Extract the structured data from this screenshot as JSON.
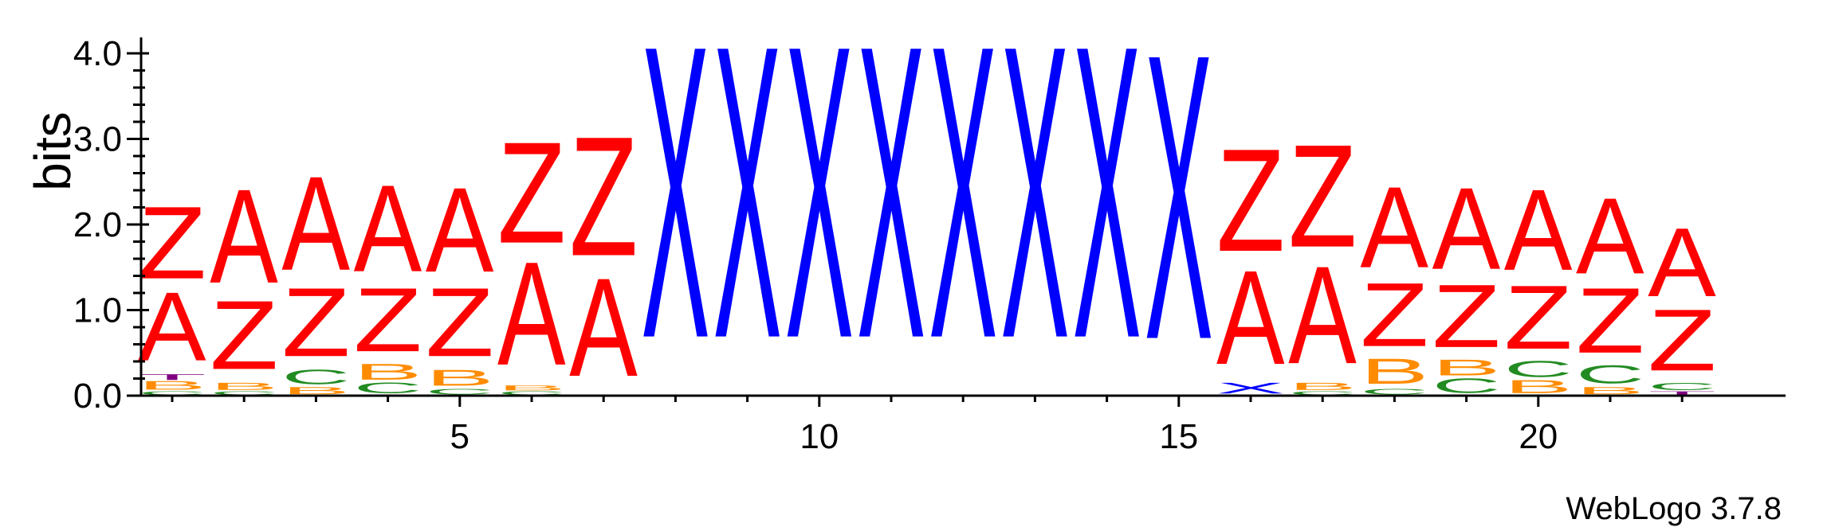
{
  "chart_data": {
    "type": "sequence-logo",
    "ylabel": "bits",
    "ylim": [
      0,
      4.0
    ],
    "y_ticks": [
      "0.0",
      "1.0",
      "2.0",
      "3.0",
      "4.0"
    ],
    "x_ticks": [
      5,
      10,
      15,
      20
    ],
    "footer": "WebLogo 3.7.8",
    "colors": {
      "A": "#ff0000",
      "Z": "#ff0000",
      "X": "#0000ff",
      "B": "#ff8c00",
      "C": "#228b22",
      "T": "#800080"
    },
    "positions": [
      {
        "pos": 1,
        "letters": [
          {
            "l": "C",
            "h": 0.05
          },
          {
            "l": "B",
            "h": 0.12
          },
          {
            "l": "T",
            "h": 0.08
          },
          {
            "l": "A",
            "h": 0.95
          },
          {
            "l": "Z",
            "h": 1.0
          }
        ]
      },
      {
        "pos": 2,
        "letters": [
          {
            "l": "C",
            "h": 0.05
          },
          {
            "l": "B",
            "h": 0.1
          },
          {
            "l": "Z",
            "h": 0.95
          },
          {
            "l": "A",
            "h": 1.3
          }
        ]
      },
      {
        "pos": 3,
        "letters": [
          {
            "l": "B",
            "h": 0.1
          },
          {
            "l": "C",
            "h": 0.2
          },
          {
            "l": "Z",
            "h": 0.95
          },
          {
            "l": "A",
            "h": 1.3
          }
        ]
      },
      {
        "pos": 4,
        "letters": [
          {
            "l": "C",
            "h": 0.15
          },
          {
            "l": "B",
            "h": 0.22
          },
          {
            "l": "Z",
            "h": 0.88
          },
          {
            "l": "A",
            "h": 1.2
          }
        ]
      },
      {
        "pos": 5,
        "letters": [
          {
            "l": "C",
            "h": 0.08
          },
          {
            "l": "B",
            "h": 0.22
          },
          {
            "l": "Z",
            "h": 0.95
          },
          {
            "l": "A",
            "h": 1.17
          }
        ]
      },
      {
        "pos": 6,
        "letters": [
          {
            "l": "C",
            "h": 0.05
          },
          {
            "l": "B",
            "h": 0.07
          },
          {
            "l": "A",
            "h": 1.43
          },
          {
            "l": "Z",
            "h": 1.4
          }
        ]
      },
      {
        "pos": 7,
        "letters": [
          {
            "l": "A",
            "h": 1.36
          },
          {
            "l": "Z",
            "h": 1.65
          }
        ]
      },
      {
        "pos": 8,
        "letters": [
          {
            "l": "X",
            "h": 4.05
          }
        ]
      },
      {
        "pos": 9,
        "letters": [
          {
            "l": "X",
            "h": 4.05
          }
        ]
      },
      {
        "pos": 10,
        "letters": [
          {
            "l": "X",
            "h": 4.05
          }
        ]
      },
      {
        "pos": 11,
        "letters": [
          {
            "l": "X",
            "h": 4.05
          }
        ]
      },
      {
        "pos": 12,
        "letters": [
          {
            "l": "X",
            "h": 4.05
          }
        ]
      },
      {
        "pos": 13,
        "letters": [
          {
            "l": "X",
            "h": 4.05
          }
        ]
      },
      {
        "pos": 14,
        "letters": [
          {
            "l": "X",
            "h": 4.05
          }
        ]
      },
      {
        "pos": 15,
        "letters": [
          {
            "l": "X",
            "h": 3.95
          }
        ]
      },
      {
        "pos": 16,
        "letters": [
          {
            "l": "X",
            "h": 0.15
          },
          {
            "l": "A",
            "h": 1.3
          },
          {
            "l": "Z",
            "h": 1.42
          }
        ]
      },
      {
        "pos": 17,
        "letters": [
          {
            "l": "C",
            "h": 0.05
          },
          {
            "l": "B",
            "h": 0.1
          },
          {
            "l": "A",
            "h": 1.35
          },
          {
            "l": "Z",
            "h": 1.42
          }
        ]
      },
      {
        "pos": 18,
        "letters": [
          {
            "l": "C",
            "h": 0.08
          },
          {
            "l": "B",
            "h": 0.35
          },
          {
            "l": "Z",
            "h": 0.88
          },
          {
            "l": "A",
            "h": 1.12
          }
        ]
      },
      {
        "pos": 19,
        "letters": [
          {
            "l": "C",
            "h": 0.2
          },
          {
            "l": "B",
            "h": 0.22
          },
          {
            "l": "Z",
            "h": 0.87
          },
          {
            "l": "A",
            "h": 1.13
          }
        ]
      },
      {
        "pos": 20,
        "letters": [
          {
            "l": "B",
            "h": 0.18
          },
          {
            "l": "C",
            "h": 0.22
          },
          {
            "l": "Z",
            "h": 0.88
          },
          {
            "l": "A",
            "h": 1.12
          }
        ]
      },
      {
        "pos": 21,
        "letters": [
          {
            "l": "B",
            "h": 0.1
          },
          {
            "l": "C",
            "h": 0.25
          },
          {
            "l": "Z",
            "h": 0.9
          },
          {
            "l": "A",
            "h": 1.05
          }
        ]
      },
      {
        "pos": 22,
        "letters": [
          {
            "l": "T",
            "h": 0.05
          },
          {
            "l": "C",
            "h": 0.1
          },
          {
            "l": "Z",
            "h": 0.85
          },
          {
            "l": "A",
            "h": 0.95
          }
        ]
      }
    ]
  }
}
